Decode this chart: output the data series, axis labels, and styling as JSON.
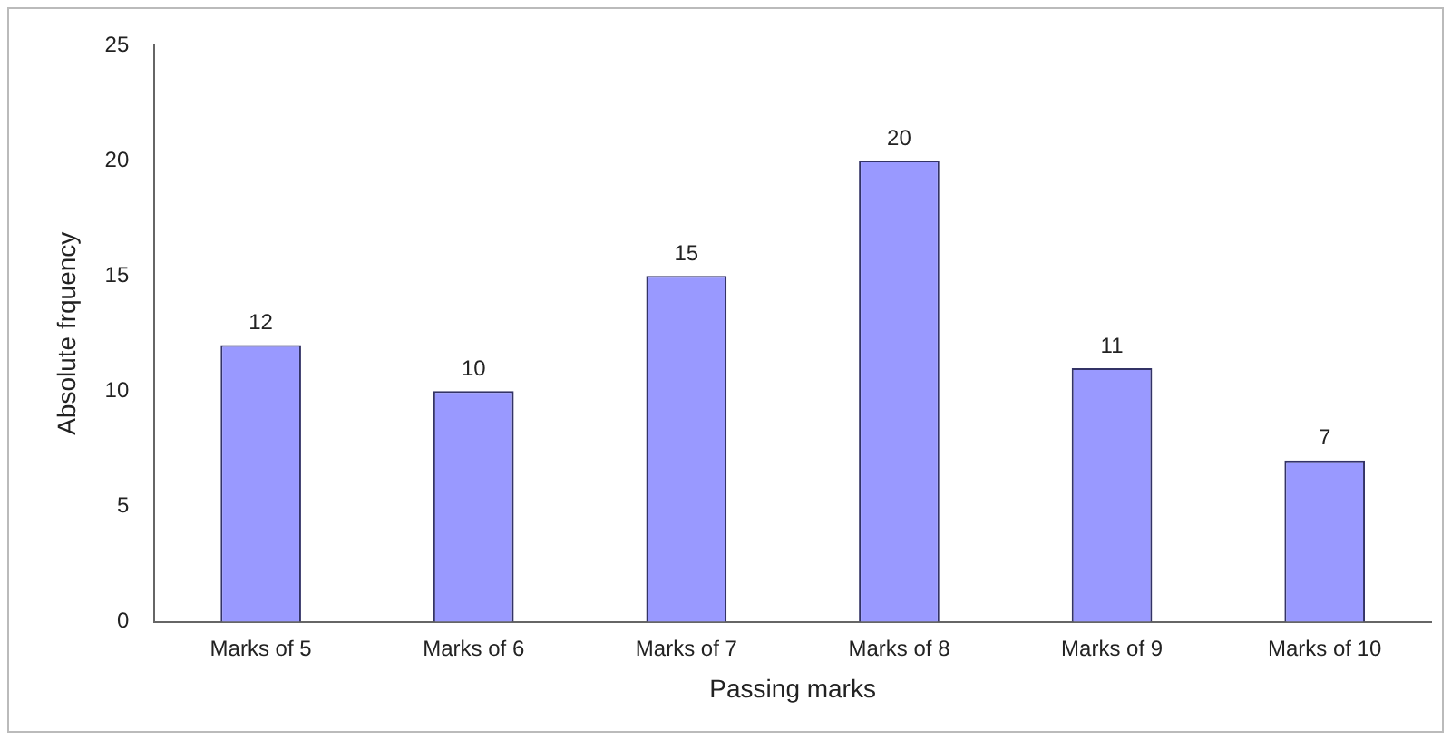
{
  "chart_data": {
    "type": "bar",
    "xlabel": "Passing marks",
    "ylabel": "Absolute frquency",
    "categories": [
      "Marks of 5",
      "Marks of 6",
      "Marks of 7",
      "Marks of 8",
      "Marks of 9",
      "Marks of 10"
    ],
    "values": [
      12,
      10,
      15,
      20,
      11,
      7
    ],
    "color": "#9999ff",
    "ylim": [
      0,
      25
    ],
    "yticks": [
      0,
      5,
      10,
      15,
      20,
      25
    ],
    "grid": false,
    "legend": false,
    "data_labels": true
  }
}
